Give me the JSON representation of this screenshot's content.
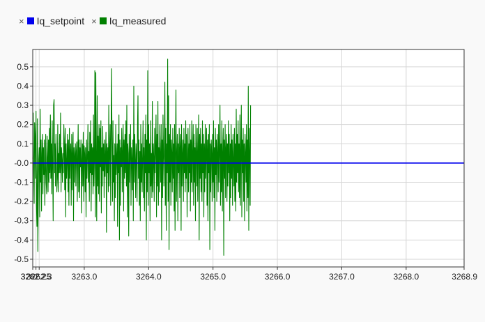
{
  "legend": {
    "items": [
      {
        "remove_symbol": "×",
        "label": "Iq_setpoint",
        "color": "#0000ee"
      },
      {
        "remove_symbol": "×",
        "label": "Iq_measured",
        "color": "#008000"
      }
    ]
  },
  "chart_data": {
    "type": "line",
    "title": "",
    "xlabel": "",
    "ylabel": "",
    "xlim": [
      3262.2,
      3268.9
    ],
    "ylim": [
      -0.54,
      0.59
    ],
    "grid": true,
    "legend_position": "top-left",
    "x_ticks": [
      3262.2,
      3262.25,
      3262.3,
      3263.0,
      3264.0,
      3265.0,
      3266.0,
      3267.0,
      3268.0,
      3268.9
    ],
    "x_tick_labels": [
      "3262.2",
      "3262.25",
      "3262.3",
      "3263.0",
      "3264.0",
      "3265.0",
      "3266.0",
      "3267.0",
      "3268.0",
      "3268.9"
    ],
    "y_ticks": [
      0.5,
      0.4,
      0.3,
      0.2,
      0.1,
      0.0,
      -0.1,
      -0.2,
      -0.3,
      -0.4,
      -0.5
    ],
    "y_tick_labels": [
      "0.5",
      "0.4",
      "0.3",
      "0.2",
      "0.1",
      "-0.0",
      "-0.1",
      "-0.2",
      "-0.3",
      "-0.4",
      "-0.5"
    ],
    "series": [
      {
        "name": "Iq_setpoint",
        "color": "#0000ee",
        "x": [
          3262.2,
          3268.9
        ],
        "y": [
          0.0,
          0.0
        ]
      },
      {
        "name": "Iq_measured",
        "color": "#008000",
        "sample_step": 0.0072,
        "x_start": 3262.2,
        "y": [
          0.02,
          0.26,
          -0.05,
          -0.21,
          0.21,
          0.15,
          -0.08,
          0.27,
          -0.22,
          -0.33,
          0.23,
          -0.46,
          -0.15,
          0.02,
          0.08,
          -0.28,
          0.28,
          -0.1,
          0.12,
          -0.25,
          0.05,
          0.15,
          -0.16,
          0.08,
          -0.06,
          0.12,
          -0.22,
          -0.05,
          0.15,
          -0.1,
          -0.16,
          0.14,
          0.03,
          -0.15,
          0.12,
          -0.1,
          0.18,
          -0.05,
          0.25,
          -0.08,
          0.1,
          -0.16,
          0.22,
          -0.02,
          -0.3,
          0.3,
          0.33,
          -0.05,
          0.1,
          -0.12,
          0.15,
          0.02,
          -0.15,
          -0.08,
          0.2,
          -0.15,
          0.05,
          -0.05,
          0.15,
          -0.05,
          0.26,
          -0.15,
          0.08,
          0.02,
          -0.1,
          0.05,
          -0.05,
          0.2,
          0.12,
          -0.14,
          0.18,
          -0.28,
          0.1,
          -0.08,
          0.0,
          0.15,
          -0.15,
          0.12,
          -0.22,
          0.18,
          -0.08,
          0.06,
          0.1,
          -0.22,
          0.15,
          -0.14,
          0.05,
          0.16,
          -0.3,
          0.08,
          -0.1,
          0.04,
          0.1,
          -0.12,
          0.06,
          0.11,
          -0.2,
          0.02,
          0.2,
          -0.15,
          0.12,
          -0.18,
          0.08,
          -0.02,
          0.12,
          -0.26,
          0.02,
          0.1,
          -0.12,
          0.16,
          -0.2,
          0.09,
          0.05,
          -0.15,
          0.08,
          -0.28,
          0.12,
          -0.08,
          0.03,
          0.2,
          -0.1,
          0.06,
          -0.2,
          0.16,
          -0.05,
          0.22,
          -0.25,
          0.1,
          -0.06,
          0.08,
          -0.16,
          0.25,
          -0.12,
          0.02,
          0.48,
          -0.28,
          0.47,
          0.05,
          -0.3,
          0.35,
          -0.12,
          0.14,
          -0.16,
          0.2,
          -0.2,
          0.18,
          -0.02,
          0.22,
          -0.26,
          0.08,
          -0.12,
          0.19,
          -0.04,
          0.1,
          -0.18,
          0.12,
          -0.07,
          0.03,
          0.16,
          -0.36,
          0.1,
          -0.05,
          0.08,
          -0.15,
          0.3,
          -0.12,
          0.05,
          0.2,
          -0.22,
          0.16,
          0.49,
          0.12,
          -0.2,
          0.22,
          -0.1,
          0.04,
          -0.3,
          0.1,
          -0.18,
          0.2,
          -0.06,
          0.03,
          0.1,
          -0.33,
          0.15,
          -0.05,
          0.25,
          -0.4,
          0.12,
          -0.22,
          0.08,
          -0.02,
          0.18,
          -0.15,
          0.05,
          0.2,
          -0.25,
          0.12,
          -0.08,
          0.15,
          -0.05,
          0.22,
          -0.12,
          0.3,
          -0.28,
          0.1,
          0.05,
          -0.38,
          0.15,
          -0.1,
          0.05,
          0.2,
          -0.22,
          0.08,
          0.02,
          -0.14,
          0.12,
          -0.3,
          0.4,
          -0.1,
          0.15,
          0.02,
          -0.18,
          0.1,
          0.05,
          -0.2,
          0.18,
          0.35,
          -0.08,
          0.12,
          -0.22,
          0.06,
          -0.3,
          0.2,
          -0.1,
          0.1,
          -0.15,
          0.05,
          0.22,
          -0.18,
          0.08,
          -0.25,
          0.15,
          -0.05,
          0.25,
          -0.4,
          0.12,
          -0.15,
          0.48,
          -0.22,
          0.2,
          -0.05,
          0.1,
          -0.3,
          0.22,
          -0.12,
          0.05,
          -0.18,
          0.32,
          -0.15,
          0.1,
          0.03,
          -0.2,
          0.18,
          -0.05,
          0.1,
          0.25,
          -0.28,
          0.15,
          -0.12,
          0.32,
          -0.22,
          0.08,
          -0.15,
          0.2,
          0.05,
          -0.1,
          0.2,
          -0.4,
          0.12,
          -0.18,
          0.25,
          0.05,
          -0.12,
          0.08,
          0.42,
          -0.22,
          0.18,
          -0.35,
          0.1,
          -0.05,
          0.54,
          -0.2,
          0.35,
          -0.45,
          0.15,
          -0.1,
          0.2,
          -0.22,
          0.12,
          0.05,
          -0.15,
          0.18,
          -0.08,
          0.1,
          -0.25,
          0.2,
          -0.35,
          0.12,
          0.38,
          -0.2,
          0.05,
          0.15,
          -0.3,
          0.1,
          -0.05,
          0.18,
          -0.18,
          0.08,
          0.15,
          -0.35,
          0.2,
          -0.12,
          0.05,
          0.12,
          -0.2,
          0.18,
          -0.05,
          0.1,
          -0.15,
          0.22,
          -0.08,
          0.15,
          -0.28,
          0.05,
          0.18,
          -0.15,
          0.1,
          -0.05,
          0.2,
          -0.25,
          0.12,
          -0.1,
          0.22,
          -0.15,
          0.05,
          0.2,
          -0.22,
          0.15,
          -0.1,
          0.08,
          -0.3,
          0.2,
          0.05,
          -0.12,
          0.18,
          -0.2,
          0.1,
          0.25,
          -0.4,
          0.15,
          -0.08,
          0.18,
          -0.15,
          0.1,
          -0.2,
          0.22,
          -0.05,
          0.15,
          -0.28,
          0.1,
          -0.15,
          0.2,
          -0.08,
          0.05,
          0.18,
          -0.22,
          0.12,
          -0.3,
          0.15,
          -0.05,
          0.2,
          -0.45,
          0.1,
          -0.15,
          0.12,
          0.05,
          -0.2,
          0.15,
          -0.1,
          0.22,
          -0.18,
          0.08,
          -0.35,
          0.18,
          -0.06,
          0.12,
          -0.2,
          0.15,
          0.05,
          -0.15,
          0.2,
          -0.1,
          0.08,
          0.3,
          -0.22,
          0.1,
          -0.15,
          0.22,
          -0.25,
          0.05,
          0.18,
          -0.48,
          0.12,
          -0.08,
          0.2,
          -0.18,
          0.08,
          0.15,
          -0.2,
          0.1,
          -0.12,
          0.22,
          -0.05,
          0.15,
          -0.3,
          0.1,
          -0.18,
          0.2,
          -0.08,
          0.12,
          -0.22,
          0.15,
          0.02,
          -0.12,
          0.18,
          -0.2,
          0.1,
          -0.25,
          0.28,
          -0.1,
          0.15,
          -0.05,
          0.22,
          -0.15,
          0.1,
          -0.18,
          0.25,
          -0.22,
          0.08,
          0.3,
          -0.28,
          0.12,
          -0.05,
          0.18,
          -0.2,
          0.1,
          -0.3,
          0.15,
          0.05,
          -0.1,
          0.2,
          -0.25,
          0.12,
          -0.18,
          0.4,
          -0.35,
          0.18,
          0.05,
          -0.22,
          0.3
        ]
      }
    ]
  }
}
